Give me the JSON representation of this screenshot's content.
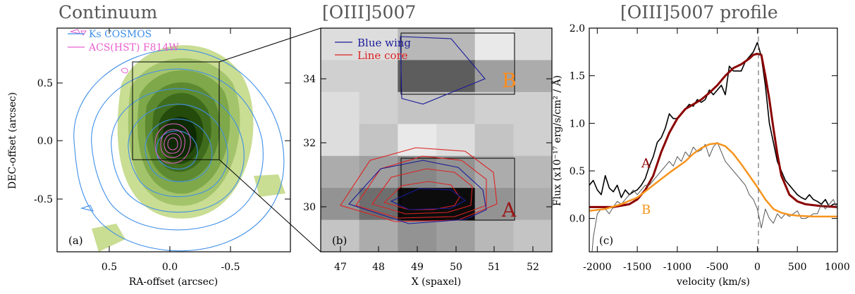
{
  "chart_data": [
    {
      "type": "contour",
      "panel_label": "(a)",
      "title": "Continuum",
      "xlabel": "RA-offset (arcsec)",
      "ylabel": "DEC-offset (arcsec)",
      "xlim": [
        0.95,
        -0.95
      ],
      "ylim": [
        -0.95,
        0.95
      ],
      "x_ticks": [
        "0.5",
        "0.0",
        "-0.5"
      ],
      "y_ticks": [
        "0.5",
        "0.0",
        "-0.5"
      ],
      "legend": [
        "Ks COSMOS",
        "ACS(HST) F814W"
      ],
      "colors": {
        "ks": "#3f8fe8",
        "acs": "#e860d0",
        "fill_dark": "#0d2a02",
        "fill_light": "#c9dd93"
      }
    },
    {
      "type": "heatmap",
      "panel_label": "(b)",
      "title": "[OIII]5007",
      "xlabel": "X (spaxel)",
      "ylabel": "",
      "xlim": [
        46.5,
        52.5
      ],
      "ylim": [
        28.5,
        35.5
      ],
      "x_ticks": [
        "47",
        "48",
        "49",
        "50",
        "51",
        "52"
      ],
      "y_ticks": [
        "30",
        "32",
        "34"
      ],
      "legend": [
        "Blue wing",
        "Line core"
      ],
      "region_labels": [
        "A",
        "B"
      ],
      "x_values": [
        47,
        48,
        49,
        50,
        51,
        52
      ],
      "y_values": [
        35,
        34,
        33,
        32,
        31,
        30,
        29
      ],
      "intensity": [
        [
          0.1,
          0.1,
          0.25,
          0.25,
          0.05,
          0.1
        ],
        [
          0.15,
          0.15,
          0.62,
          0.62,
          0.35,
          0.3
        ],
        [
          0.1,
          0.15,
          0.2,
          0.2,
          0.15,
          0.15
        ],
        [
          0.1,
          0.2,
          0.05,
          0.1,
          0.2,
          0.15
        ],
        [
          0.3,
          0.35,
          0.45,
          0.4,
          0.3,
          0.25
        ],
        [
          0.4,
          0.55,
          0.95,
          0.95,
          0.4,
          0.3
        ],
        [
          0.2,
          0.3,
          0.4,
          0.35,
          0.25,
          0.2
        ]
      ],
      "colors": {
        "blue_wing": "#1a1a99",
        "line_core": "#dd2222",
        "label_A": "#9b1515",
        "label_B": "#ff8c1a"
      }
    },
    {
      "type": "line",
      "panel_label": "(c)",
      "title": "[OIII]5007 profile",
      "xlabel": "velocity (km/s)",
      "ylabel": "Flux (x10⁻¹⁷ erg/s/cm² / Å)",
      "xlim": [
        -2100,
        1000
      ],
      "ylim": [
        -0.35,
        2.0
      ],
      "x_ticks": [
        "-2000",
        "-1500",
        "-1000",
        "-500",
        "0",
        "500",
        "1000"
      ],
      "y_ticks": [
        "0.0",
        "0.5",
        "1.0",
        "1.5",
        "2.0"
      ],
      "vline_x": 0,
      "series": [
        {
          "name": "A",
          "color": "#000000",
          "width": 1.6,
          "x": [
            -2100,
            -2050,
            -2000,
            -1950,
            -1900,
            -1850,
            -1800,
            -1750,
            -1700,
            -1650,
            -1600,
            -1550,
            -1500,
            -1450,
            -1400,
            -1350,
            -1300,
            -1250,
            -1200,
            -1150,
            -1100,
            -1050,
            -1000,
            -950,
            -900,
            -850,
            -800,
            -750,
            -700,
            -650,
            -600,
            -550,
            -500,
            -450,
            -400,
            -350,
            -300,
            -250,
            -200,
            -150,
            -100,
            -50,
            0,
            50,
            100,
            150,
            200,
            250,
            300,
            350,
            400,
            450,
            500,
            550,
            600,
            650,
            700,
            750,
            800,
            850,
            900,
            950,
            1000
          ],
          "y": [
            0.35,
            0.4,
            0.3,
            0.25,
            0.45,
            0.32,
            0.28,
            0.35,
            0.22,
            0.3,
            0.25,
            0.28,
            0.3,
            0.35,
            0.42,
            0.55,
            0.65,
            0.8,
            0.85,
            0.95,
            1.1,
            1.05,
            1.05,
            1.1,
            1.15,
            1.2,
            1.18,
            1.25,
            1.22,
            1.25,
            1.35,
            1.3,
            1.35,
            1.4,
            1.3,
            1.6,
            1.55,
            1.55,
            1.55,
            1.65,
            1.7,
            1.75,
            1.85,
            1.7,
            1.4,
            1.0,
            0.8,
            0.6,
            0.5,
            0.4,
            0.35,
            0.3,
            0.25,
            0.22,
            0.2,
            0.25,
            0.2,
            0.18,
            0.15,
            0.2,
            0.12,
            0.15,
            0.15
          ]
        },
        {
          "name": "A fit",
          "color": "#8b0000",
          "width": 3,
          "x": [
            -2100,
            -1800,
            -1600,
            -1500,
            -1400,
            -1300,
            -1200,
            -1100,
            -1000,
            -900,
            -800,
            -700,
            -600,
            -500,
            -400,
            -300,
            -200,
            -100,
            -50,
            0,
            50,
            100,
            150,
            200,
            250,
            300,
            400,
            500,
            600,
            800,
            1000
          ],
          "y": [
            0.12,
            0.12,
            0.15,
            0.2,
            0.3,
            0.45,
            0.7,
            0.9,
            1.05,
            1.15,
            1.2,
            1.25,
            1.32,
            1.4,
            1.5,
            1.58,
            1.62,
            1.68,
            1.72,
            1.73,
            1.72,
            1.5,
            1.25,
            0.95,
            0.68,
            0.45,
            0.25,
            0.18,
            0.15,
            0.13,
            0.12
          ]
        },
        {
          "name": "B",
          "color": "#555555",
          "width": 1,
          "x": [
            -2100,
            -2050,
            -2000,
            -1950,
            -1900,
            -1850,
            -1800,
            -1750,
            -1700,
            -1650,
            -1600,
            -1550,
            -1500,
            -1450,
            -1400,
            -1350,
            -1300,
            -1250,
            -1200,
            -1150,
            -1100,
            -1050,
            -1000,
            -950,
            -900,
            -850,
            -800,
            -750,
            -700,
            -650,
            -600,
            -550,
            -500,
            -450,
            -400,
            -350,
            -300,
            -250,
            -200,
            -150,
            -100,
            -50,
            0,
            50,
            100,
            150,
            200,
            250,
            300,
            350,
            400,
            450,
            500,
            550,
            600,
            650,
            700,
            750,
            800,
            850,
            900,
            950,
            1000
          ],
          "y": [
            -0.7,
            -0.2,
            0.05,
            0.1,
            0.1,
            0.05,
            0.12,
            0.18,
            0.15,
            0.2,
            0.25,
            0.3,
            0.25,
            0.3,
            0.35,
            0.35,
            0.4,
            0.45,
            0.5,
            0.55,
            0.6,
            0.55,
            0.65,
            0.6,
            0.7,
            0.65,
            0.75,
            0.7,
            0.72,
            0.78,
            0.65,
            0.75,
            0.8,
            0.7,
            0.6,
            0.55,
            0.5,
            0.45,
            0.4,
            0.35,
            0.25,
            0.2,
            0.1,
            -0.1,
            0.1,
            0.0,
            -0.05,
            0.05,
            0.0,
            0.05,
            0.02,
            0.05,
            0.08,
            0.0,
            0.0,
            0.02,
            0.05,
            0.05,
            0.15,
            0.1,
            0.15,
            0.2,
            0.1
          ]
        },
        {
          "name": "B fit",
          "color": "#f7941d",
          "width": 2.5,
          "x": [
            -2100,
            -1900,
            -1700,
            -1500,
            -1300,
            -1100,
            -900,
            -800,
            -700,
            -600,
            -500,
            -400,
            -300,
            -200,
            -100,
            0,
            100,
            200,
            300,
            400,
            500,
            700,
            1000
          ],
          "y": [
            0.08,
            0.1,
            0.15,
            0.22,
            0.35,
            0.48,
            0.6,
            0.68,
            0.74,
            0.78,
            0.79,
            0.76,
            0.68,
            0.57,
            0.45,
            0.33,
            0.2,
            0.1,
            0.06,
            0.04,
            0.03,
            0.02,
            0.02
          ]
        }
      ],
      "labels": [
        "A",
        "B"
      ]
    }
  ]
}
